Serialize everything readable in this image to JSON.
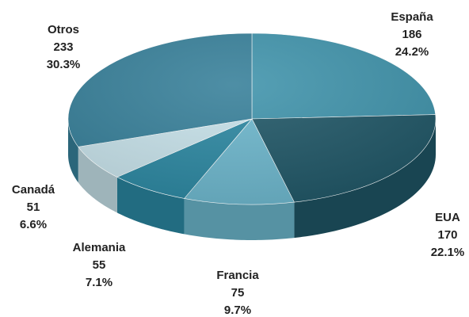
{
  "chart_data": {
    "type": "pie",
    "categories": [
      "España",
      "EUA",
      "Francia",
      "Alemania",
      "Canadá",
      "Otros"
    ],
    "counts": [
      186,
      170,
      75,
      55,
      51,
      233
    ],
    "values": [
      24.2,
      22.1,
      9.7,
      7.1,
      6.6,
      30.3
    ],
    "value_labels": [
      "24.2%",
      "22.1%",
      "9.7%",
      "7.1%",
      "6.6%",
      "30.3%"
    ],
    "colors": [
      "#3f93ab",
      "#1f5666",
      "#6cb6cc",
      "#2b87a1",
      "#c6e1e9",
      "#367f99"
    ]
  }
}
